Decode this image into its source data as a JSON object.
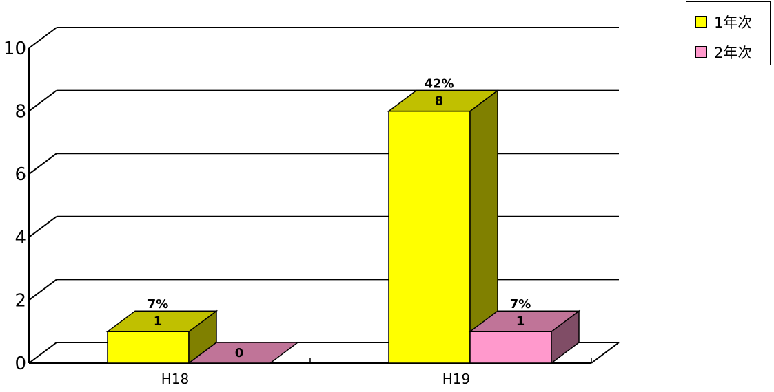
{
  "chart_data": {
    "type": "bar",
    "categories": [
      "H18",
      "H19"
    ],
    "series": [
      {
        "name": "1年次",
        "values": [
          1,
          8
        ],
        "percent_labels": [
          "7%",
          "42%"
        ],
        "color": "#ffff00",
        "top_color": "#c0c000",
        "side_color": "#808000"
      },
      {
        "name": "2年次",
        "values": [
          0,
          1
        ],
        "percent_labels": [
          "",
          "7%"
        ],
        "color": "#ff99cc",
        "top_color": "#c07498",
        "side_color": "#804d66"
      }
    ],
    "ylim": [
      0,
      10
    ],
    "yticks": [
      "0",
      "2",
      "4",
      "6",
      "8",
      "10"
    ],
    "grid": true,
    "legend_position": "top-right",
    "title": "",
    "xlabel": "",
    "ylabel": ""
  }
}
